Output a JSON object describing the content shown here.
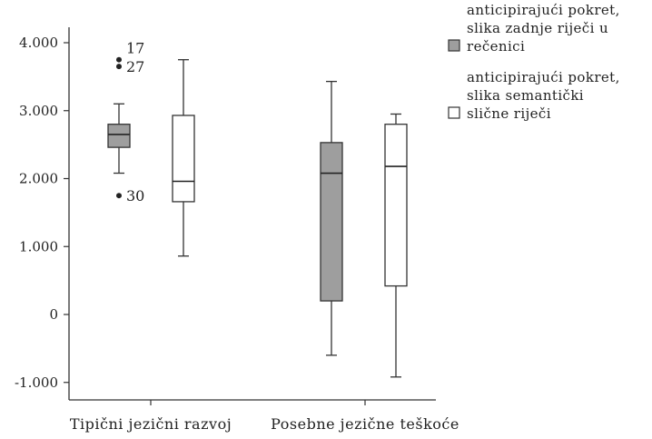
{
  "chart_data": {
    "type": "boxplot",
    "categories": [
      "Tipični jezični razvoj",
      "Posebne jezične teškoće"
    ],
    "yticks": [
      4000,
      3000,
      2000,
      1000,
      0,
      -1000
    ],
    "ytick_labels": [
      "4.000",
      "3.000",
      "2.000",
      "1.000",
      "0",
      "-1.000"
    ],
    "ylim": [
      -1250,
      4350
    ],
    "series": [
      {
        "name": "anticipirajući pokret, slika zadnje riječi u rečenici",
        "legend_lines": [
          "anticipirajući pokret,",
          "slika zadnje riječi u",
          "rečenici"
        ],
        "fill": "#9e9e9e",
        "boxes": [
          {
            "whisker_low": 2080,
            "q1": 2460,
            "median": 2650,
            "q3": 2800,
            "whisker_high": 3100,
            "outliers": [
              {
                "value": 3750,
                "label": "17"
              },
              {
                "value": 3650,
                "label": "27"
              },
              {
                "value": 1750,
                "label": "30"
              }
            ]
          },
          {
            "whisker_low": -600,
            "q1": 200,
            "median": 2080,
            "q3": 2530,
            "whisker_high": 3430,
            "outliers": []
          }
        ]
      },
      {
        "name": "anticipirajući pokret, slika semantički slične riječi",
        "legend_lines": [
          "anticipirajući pokret,",
          "slika semantički",
          "slične riječi"
        ],
        "fill": "#ffffff",
        "boxes": [
          {
            "whisker_low": 860,
            "q1": 1660,
            "median": 1960,
            "q3": 2930,
            "whisker_high": 3750,
            "outliers": []
          },
          {
            "whisker_low": -920,
            "q1": 420,
            "median": 2180,
            "q3": 2800,
            "whisker_high": 2950,
            "outliers": []
          }
        ]
      }
    ],
    "grid": false,
    "legend_position": "right"
  }
}
